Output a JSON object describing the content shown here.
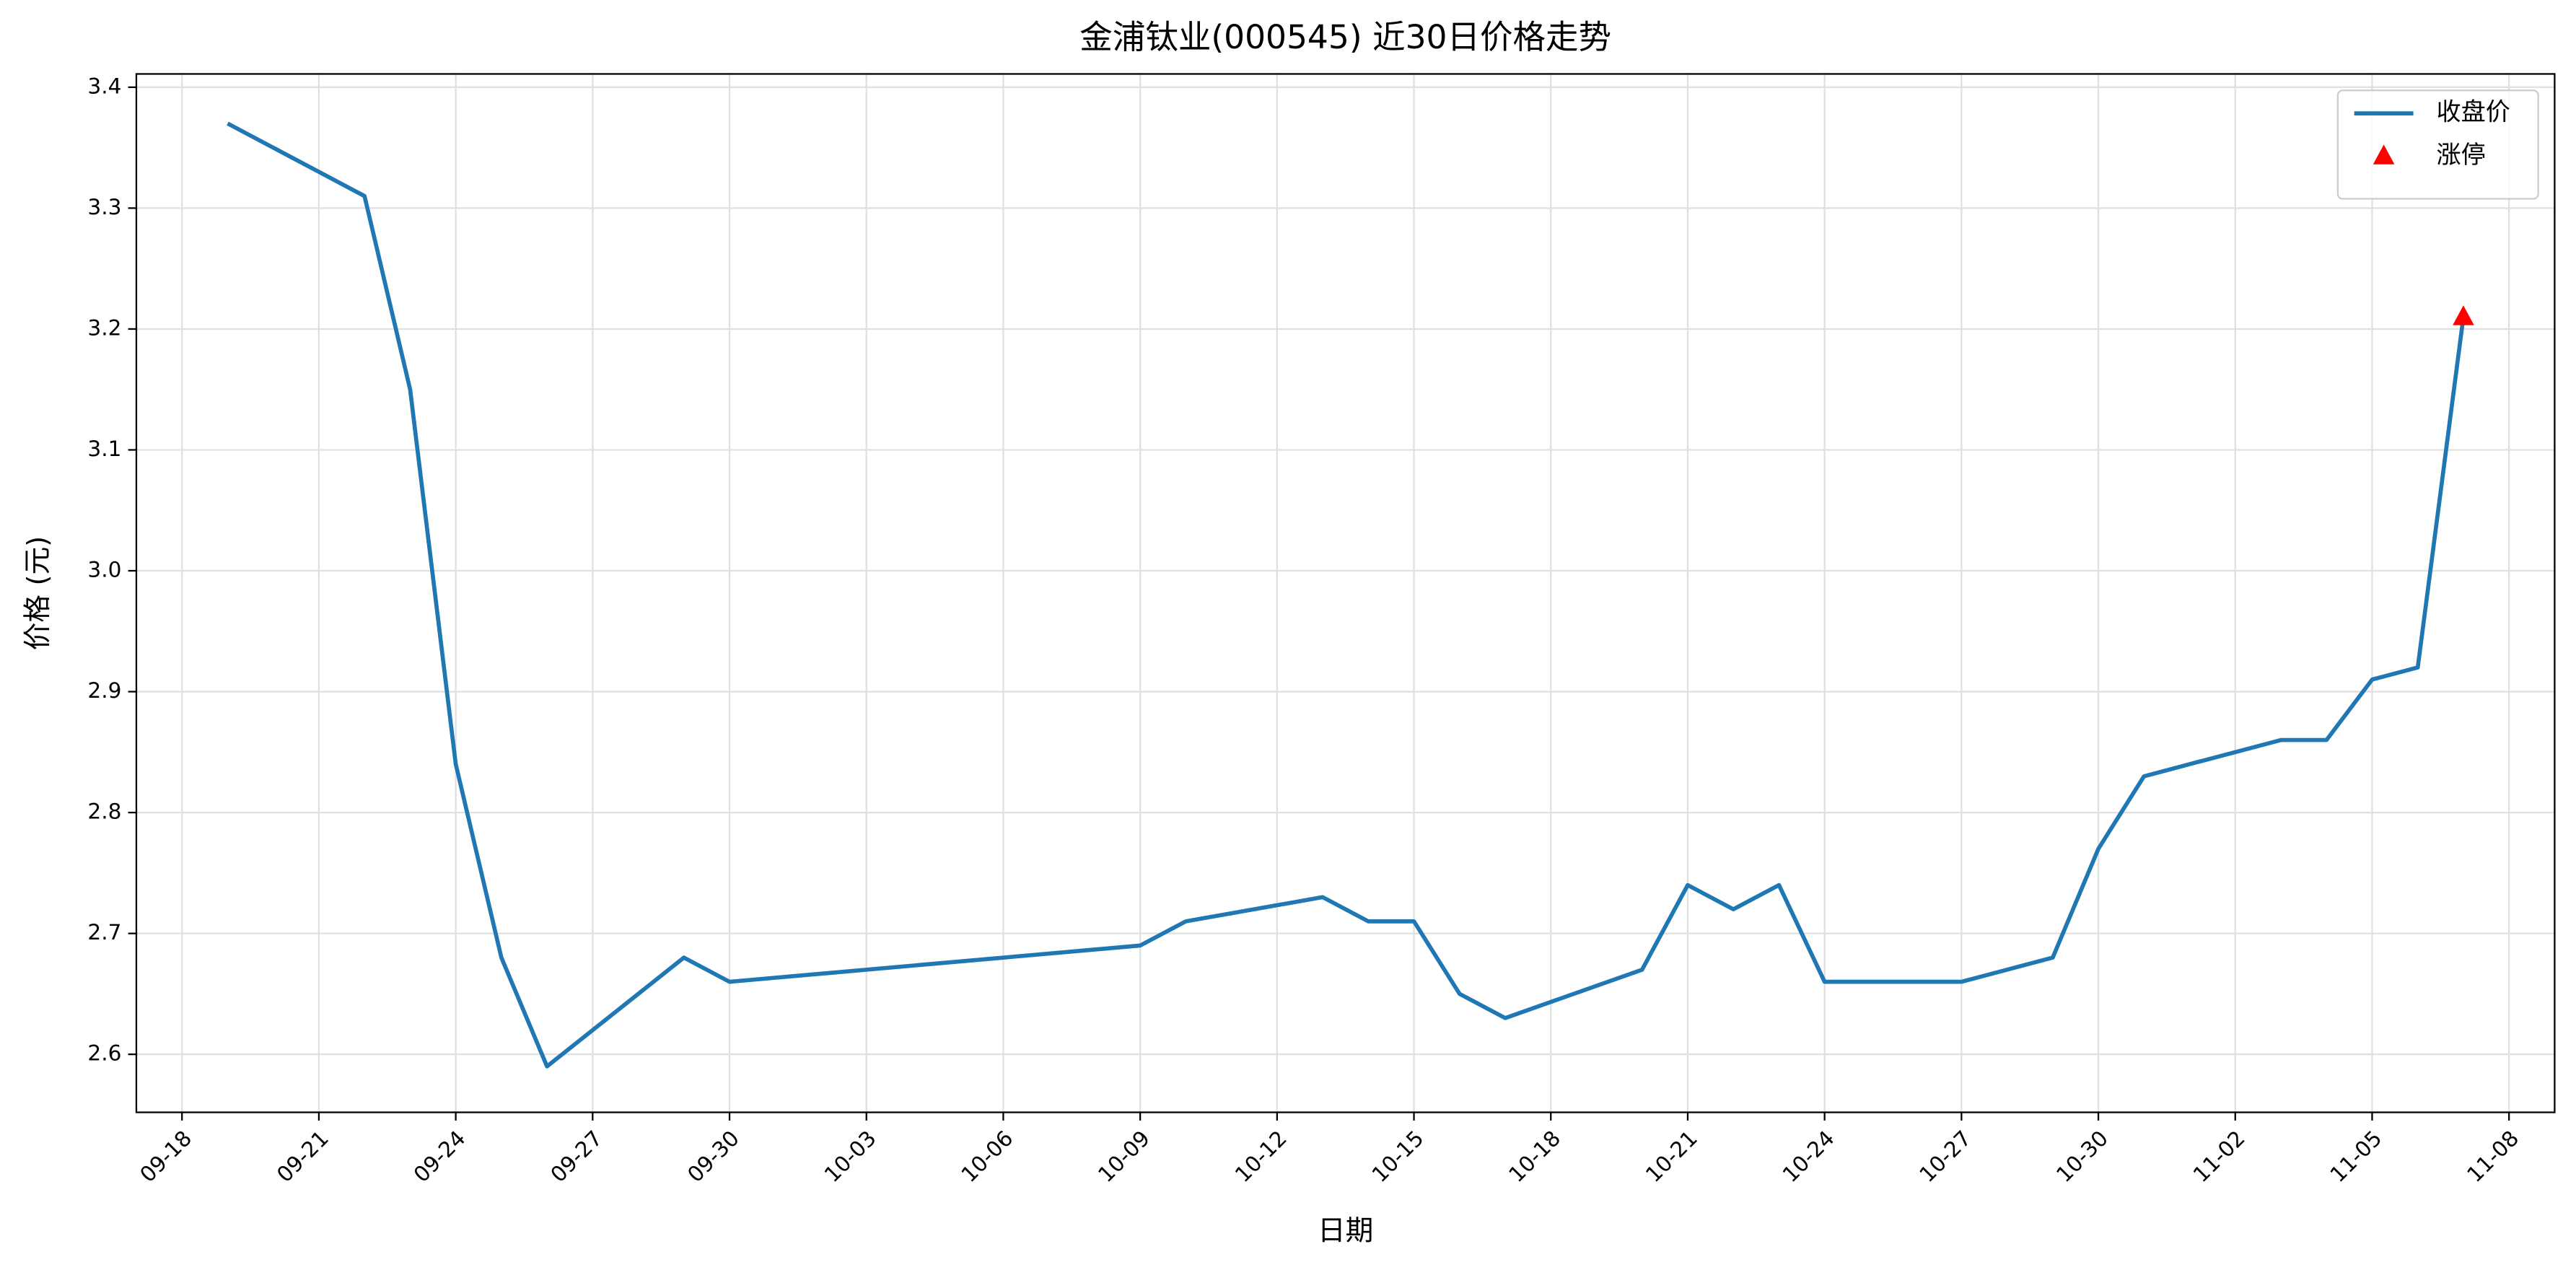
{
  "chart_data": {
    "type": "line",
    "title": "金浦钛业(000545) 近30日价格走势",
    "xlabel": "日期",
    "ylabel": "价格 (元)",
    "series": [
      {
        "name": "收盘价",
        "type": "line",
        "color": "#1f77b4",
        "x": [
          "09-19",
          "09-22",
          "09-23",
          "09-24",
          "09-25",
          "09-26",
          "09-29",
          "09-30",
          "10-09",
          "10-10",
          "10-13",
          "10-14",
          "10-15",
          "10-16",
          "10-17",
          "10-20",
          "10-21",
          "10-22",
          "10-23",
          "10-24",
          "10-27",
          "10-28",
          "10-29",
          "10-30",
          "10-31",
          "11-03",
          "11-04",
          "11-05",
          "11-06",
          "11-07"
        ],
        "values": [
          3.37,
          3.31,
          3.15,
          2.84,
          2.68,
          2.59,
          2.68,
          2.66,
          2.69,
          2.71,
          2.73,
          2.71,
          2.71,
          2.65,
          2.63,
          2.67,
          2.74,
          2.72,
          2.74,
          2.66,
          2.66,
          2.67,
          2.68,
          2.77,
          2.83,
          2.86,
          2.86,
          2.91,
          2.92,
          3.21
        ]
      },
      {
        "name": "涨停",
        "type": "scatter",
        "color": "#ff0000",
        "x": [
          "11-07"
        ],
        "values": [
          3.21
        ]
      }
    ],
    "xlim": [
      "09-17",
      "11-09"
    ],
    "xticks": [
      "09-18",
      "09-21",
      "09-24",
      "09-27",
      "09-30",
      "10-03",
      "10-06",
      "10-09",
      "10-12",
      "10-15",
      "10-18",
      "10-21",
      "10-24",
      "10-27",
      "10-30",
      "11-02",
      "11-05",
      "11-08"
    ],
    "ylim": [
      2.552,
      3.411
    ],
    "yticks": [
      2.6,
      2.7,
      2.8,
      2.9,
      {
        "value": 3,
        "label": "3.0"
      },
      3.1,
      3.2,
      3.3,
      3.4
    ],
    "grid": true,
    "legend": "upper right"
  }
}
